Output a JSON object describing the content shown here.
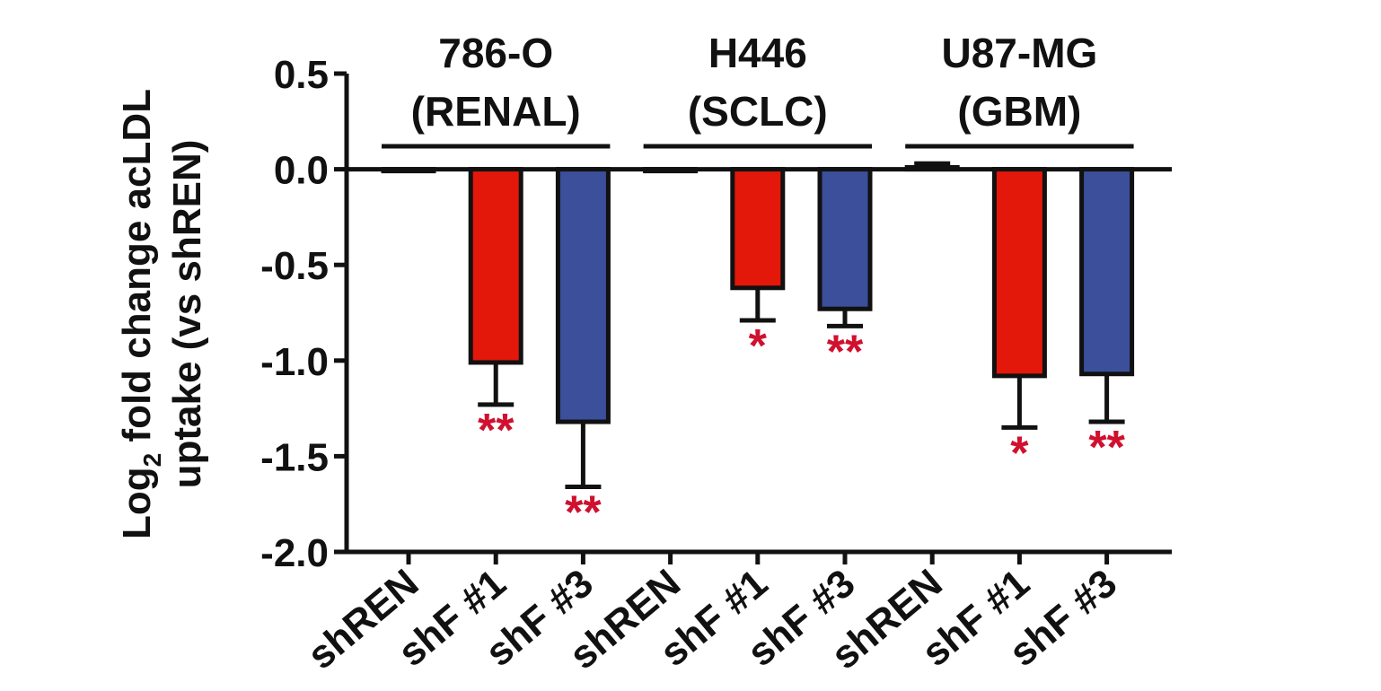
{
  "chart_data": {
    "type": "bar",
    "ylabel_line1_prefix": "Log",
    "ylabel_subscript": "2",
    "ylabel_line1_suffix": " fold change acLDL",
    "ylabel_line2": "uptake (vs shREN)",
    "ylim": [
      -2.0,
      0.5
    ],
    "yticks": [
      "0.5",
      "0.0",
      "-0.5",
      "-1.0",
      "-1.5",
      "-2.0"
    ],
    "ytick_values": [
      0.5,
      0.0,
      -0.5,
      -1.0,
      -1.5,
      -2.0
    ],
    "groups": [
      {
        "line1": "786-O",
        "line2": "(RENAL)"
      },
      {
        "line1": "H446",
        "line2": "(SCLC)"
      },
      {
        "line1": "U87-MG",
        "line2": "(GBM)"
      }
    ],
    "bars": [
      {
        "label": "shREN",
        "value": 0.0,
        "error": 0.0,
        "sig": "",
        "color": "#ffffff"
      },
      {
        "label": "shF #1",
        "value": -1.01,
        "error": 0.22,
        "sig": "**",
        "color": "#e3170a"
      },
      {
        "label": "shF #3",
        "value": -1.32,
        "error": 0.34,
        "sig": "**",
        "color": "#3b4f9b"
      },
      {
        "label": "shREN",
        "value": 0.0,
        "error": 0.0,
        "sig": "",
        "color": "#ffffff"
      },
      {
        "label": "shF #1",
        "value": -0.62,
        "error": 0.17,
        "sig": "*",
        "color": "#e3170a"
      },
      {
        "label": "shF #3",
        "value": -0.73,
        "error": 0.09,
        "sig": "**",
        "color": "#3b4f9b"
      },
      {
        "label": "shREN",
        "value": 0.01,
        "error": 0.02,
        "sig": "",
        "color": "#ffffff"
      },
      {
        "label": "shF #1",
        "value": -1.08,
        "error": 0.27,
        "sig": "*",
        "color": "#e3170a"
      },
      {
        "label": "shF #3",
        "value": -1.07,
        "error": 0.25,
        "sig": "**",
        "color": "#3b4f9b"
      }
    ],
    "significance_color": "#d0102e",
    "grid": false
  }
}
